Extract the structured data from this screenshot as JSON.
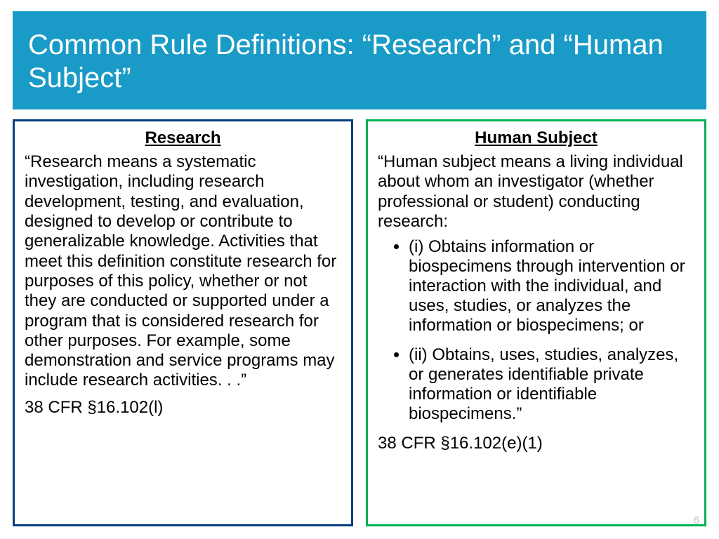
{
  "header": {
    "title": "Common Rule Definitions: “Research” and “Human Subject”",
    "background_color": "#1a9bc7",
    "text_color": "#ffffff",
    "title_fontsize": 40
  },
  "left_box": {
    "heading": "Research",
    "body": "“Research means a systematic investigation, including research development, testing, and evaluation, designed to develop or contribute to generalizable knowledge. Activities that meet this definition constitute research for purposes of this policy, whether or not they are conducted or supported under a program that is considered research for other purposes.  For example, some demonstration and service programs may include research activities. . .”",
    "citation": "38 CFR §16.102(l)",
    "border_color": "#003e7e",
    "border_width": 3,
    "heading_fontsize": 24,
    "body_fontsize": 24,
    "text_color": "#000000"
  },
  "right_box": {
    "heading": "Human Subject",
    "intro": "“Human subject means a living individual about whom an investigator (whether professional or student) conducting research:",
    "bullets": [
      "(i) Obtains information or biospecimens through intervention or interaction with the individual, and uses, studies, or analyzes the information or biospecimens; or",
      "(ii) Obtains, uses, studies, analyzes, or generates identifiable private information or identifiable biospecimens.”"
    ],
    "citation": "38 CFR §16.102(e)(1)",
    "border_color": "#00b050",
    "border_width": 3,
    "heading_fontsize": 24,
    "body_fontsize": 24,
    "text_color": "#000000"
  },
  "page_number": "6",
  "layout": {
    "slide_width": 1024,
    "slide_height": 768,
    "background_color": "#ffffff"
  }
}
